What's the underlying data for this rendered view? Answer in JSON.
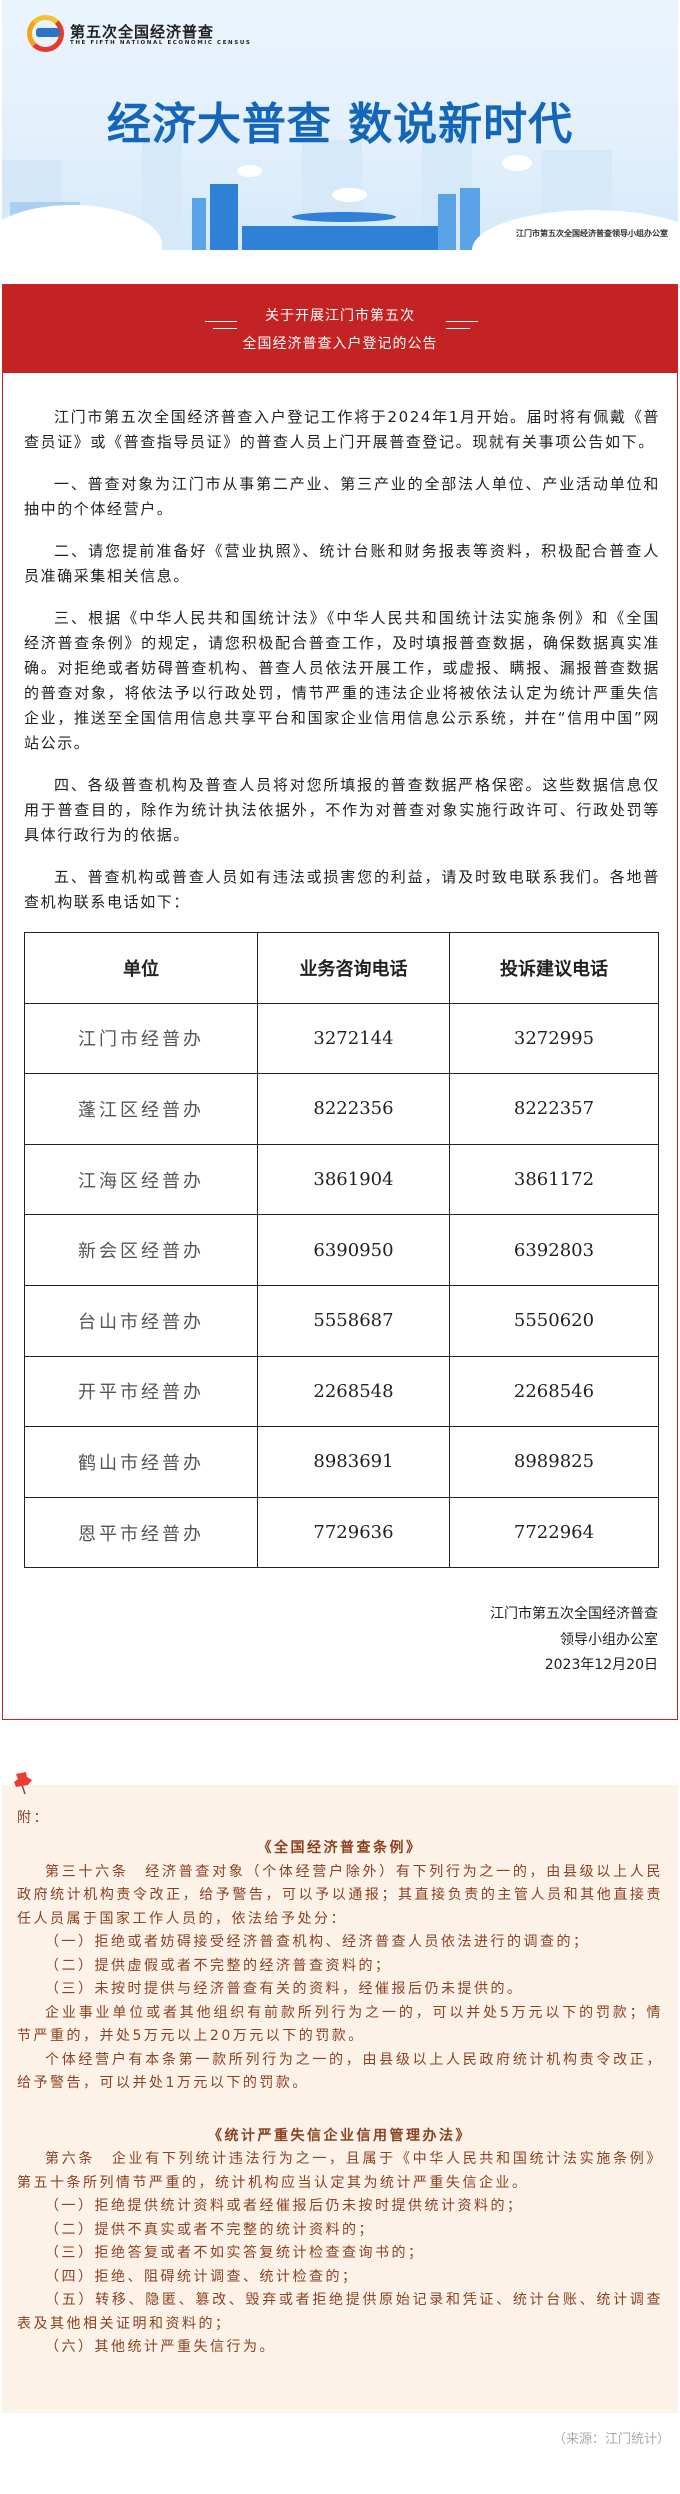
{
  "banner": {
    "logo_cn": "第五次全国经济普查",
    "logo_en": "THE FIFTH NATIONAL ECONOMIC CENSUS",
    "title": "经济大普查 数说新时代",
    "org": "江门市第五次全国经济普查领导小组办公室"
  },
  "notice": {
    "title_line1": "关于开展江门市第五次",
    "title_line2": "全国经济普查入户登记的公告",
    "paragraphs": [
      "江门市第五次全国经济普查入户登记工作将于2024年1月开始。届时将有佩戴《普查员证》或《普查指导员证》的普查人员上门开展普查登记。现就有关事项公告如下。",
      "一、普查对象为江门市从事第二产业、第三产业的全部法人单位、产业活动单位和抽中的个体经营户。",
      "二、请您提前准备好《营业执照》、统计台账和财务报表等资料，积极配合普查人员准确采集相关信息。",
      "三、根据《中华人民共和国统计法》《中华人民共和国统计法实施条例》和《全国经济普查条例》的规定，请您积极配合普查工作，及时填报普查数据，确保数据真实准确。对拒绝或者妨碍普查机构、普查人员依法开展工作，或虚报、瞒报、漏报普查数据的普查对象，将依法予以行政处罚，情节严重的违法企业将被依法认定为统计严重失信企业，推送至全国信用信息共享平台和国家企业信用信息公示系统，并在“信用中国”网站公示。",
      "四、各级普查机构及普查人员将对您所填报的普查数据严格保密。这些数据信息仅用于普查目的，除作为统计执法依据外，不作为对普查对象实施行政许可、行政处罚等具体行政行为的依据。",
      "五、普查机构或普查人员如有违法或损害您的利益，请及时致电联系我们。各地普查机构联系电话如下："
    ],
    "table": {
      "headers": [
        "单位",
        "业务咨询电话",
        "投诉建议电话"
      ],
      "rows": [
        [
          "江门市经普办",
          "3272144",
          "3272995"
        ],
        [
          "蓬江区经普办",
          "8222356",
          "8222357"
        ],
        [
          "江海区经普办",
          "3861904",
          "3861172"
        ],
        [
          "新会区经普办",
          "6390950",
          "6392803"
        ],
        [
          "台山市经普办",
          "5558687",
          "5550620"
        ],
        [
          "开平市经普办",
          "2268548",
          "2268546"
        ],
        [
          "鹤山市经普办",
          "8983691",
          "8989825"
        ],
        [
          "恩平市经普办",
          "7729636",
          "7722964"
        ]
      ]
    },
    "signature": {
      "line1": "江门市第五次全国经济普查",
      "line2": "领导小组办公室",
      "date": "2023年12月20日"
    }
  },
  "appendix": {
    "label": "附：",
    "law1": {
      "title": "《全国经济普查条例》",
      "intro": "第三十六条　经济普查对象（个体经营户除外）有下列行为之一的，由县级以上人民政府统计机构责令改正，给予警告，可以予以通报；其直接负责的主管人员和其他直接责任人员属于国家工作人员的，依法给予处分：",
      "items": [
        "（一）拒绝或者妨碍接受经济普查机构、经济普查人员依法进行的调查的；",
        "（二）提供虚假或者不完整的经济普查资料的；",
        "（三）未按时提供与经济普查有关的资料，经催报后仍未提供的。"
      ],
      "p2": "企业事业单位或者其他组织有前款所列行为之一的，可以并处5万元以下的罚款；情节严重的，并处5万元以上20万元以下的罚款。",
      "p3": "个体经营户有本条第一款所列行为之一的，由县级以上人民政府统计机构责令改正，给予警告，可以并处1万元以下的罚款。"
    },
    "law2": {
      "title": "《统计严重失信企业信用管理办法》",
      "intro": "第六条　企业有下列统计违法行为之一，且属于《中华人民共和国统计法实施条例》第五十条所列情节严重的，统计机构应当认定其为统计严重失信企业。",
      "items": [
        "（一）拒绝提供统计资料或者经催报后仍未按时提供统计资料的；",
        "（二）提供不真实或者不完整的统计资料的；",
        "（三）拒绝答复或者不如实答复统计检查查询书的；",
        "（四）拒绝、阻碍统计调查、统计检查的；",
        "（五）转移、隐匿、篡改、毁弃或者拒绝提供原始记录和凭证、统计台账、统计调查表及其他相关证明和资料的；",
        "（六）其他统计严重失信行为。"
      ]
    }
  },
  "source": "（来源：江门统计）",
  "colors": {
    "header_red": "#c32323",
    "title_blue": "#1466b8",
    "appendix_bg": "#fdf2e8",
    "appendix_text": "#8a4322"
  }
}
